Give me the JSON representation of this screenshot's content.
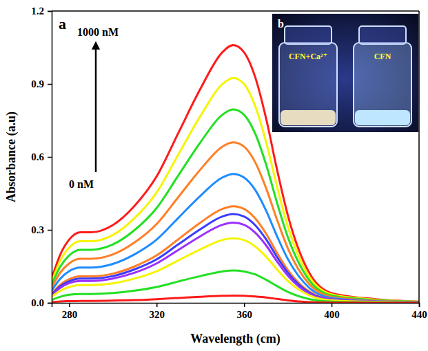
{
  "chart_data": {
    "type": "line",
    "panel_label": "a",
    "x_label": "Wavelength (cm)",
    "y_label": "Absorbance (a.u)",
    "annotations": [
      "1000 nM",
      "0 nM"
    ],
    "x": [
      272,
      276,
      280,
      285,
      290,
      300,
      310,
      320,
      330,
      340,
      350,
      355,
      360,
      365,
      370,
      375,
      380,
      390,
      400,
      420,
      440
    ],
    "xlim": [
      272,
      440
    ],
    "xticks": [
      280,
      320,
      360,
      400,
      440
    ],
    "ylim": [
      0,
      1.2
    ],
    "yticks": [
      {
        "value": 0,
        "label": "0.0"
      },
      0.3,
      0.6,
      0.9,
      1.2
    ],
    "series": [
      {
        "color": "#ff1a1a",
        "values": [
          0.1,
          0.2,
          0.26,
          0.29,
          0.29,
          0.32,
          0.4,
          0.52,
          0.7,
          0.88,
          1.03,
          1.06,
          1.03,
          0.93,
          0.76,
          0.55,
          0.36,
          0.12,
          0.04,
          0.015,
          0.005
        ]
      },
      {
        "color": "#f5f500",
        "values": [
          0.087,
          0.175,
          0.227,
          0.253,
          0.253,
          0.279,
          0.349,
          0.454,
          0.611,
          0.768,
          0.899,
          0.925,
          0.899,
          0.811,
          0.663,
          0.48,
          0.315,
          0.105,
          0.035,
          0.013,
          0.005
        ]
      },
      {
        "color": "#22e022",
        "values": [
          0.075,
          0.15,
          0.195,
          0.218,
          0.218,
          0.24,
          0.3,
          0.39,
          0.525,
          0.66,
          0.773,
          0.795,
          0.773,
          0.697,
          0.57,
          0.413,
          0.27,
          0.09,
          0.03,
          0.011,
          0.004
        ]
      },
      {
        "color": "#ff7f27",
        "values": [
          0.062,
          0.125,
          0.162,
          0.181,
          0.181,
          0.199,
          0.249,
          0.324,
          0.436,
          0.548,
          0.642,
          0.66,
          0.642,
          0.579,
          0.473,
          0.343,
          0.224,
          0.075,
          0.025,
          0.009,
          0.003
        ]
      },
      {
        "color": "#1e8cff",
        "values": [
          0.05,
          0.1,
          0.13,
          0.145,
          0.145,
          0.16,
          0.2,
          0.26,
          0.35,
          0.44,
          0.515,
          0.53,
          0.515,
          0.465,
          0.38,
          0.275,
          0.18,
          0.06,
          0.02,
          0.007,
          0.003
        ]
      },
      {
        "color": "#ff7f27",
        "values": [
          0.037,
          0.075,
          0.097,
          0.109,
          0.109,
          0.12,
          0.15,
          0.195,
          0.262,
          0.33,
          0.386,
          0.397,
          0.386,
          0.348,
          0.285,
          0.206,
          0.135,
          0.045,
          0.015,
          0.006,
          0.002
        ]
      },
      {
        "color": "#3b3bff",
        "values": [
          0.034,
          0.069,
          0.089,
          0.1,
          0.1,
          0.11,
          0.138,
          0.179,
          0.241,
          0.303,
          0.355,
          0.365,
          0.355,
          0.32,
          0.262,
          0.189,
          0.124,
          0.041,
          0.014,
          0.005,
          0.002
        ]
      },
      {
        "color": "#9b30ff",
        "values": [
          0.031,
          0.062,
          0.081,
          0.09,
          0.09,
          0.1,
          0.124,
          0.162,
          0.218,
          0.274,
          0.321,
          0.33,
          0.321,
          0.289,
          0.237,
          0.171,
          0.112,
          0.037,
          0.013,
          0.005,
          0.002
        ]
      },
      {
        "color": "#f5f500",
        "values": [
          0.025,
          0.05,
          0.065,
          0.073,
          0.073,
          0.08,
          0.1,
          0.13,
          0.175,
          0.22,
          0.258,
          0.265,
          0.258,
          0.232,
          0.19,
          0.138,
          0.09,
          0.03,
          0.01,
          0.004,
          0.001
        ]
      },
      {
        "color": "#22e022",
        "values": [
          0.012,
          0.025,
          0.033,
          0.036,
          0.036,
          0.04,
          0.05,
          0.065,
          0.088,
          0.11,
          0.129,
          0.133,
          0.129,
          0.117,
          0.095,
          0.069,
          0.045,
          0.015,
          0.005,
          0.002,
          0.001
        ]
      },
      {
        "color": "#ff1a1a",
        "values": [
          0.003,
          0.006,
          0.007,
          0.008,
          0.008,
          0.009,
          0.011,
          0.015,
          0.02,
          0.025,
          0.029,
          0.03,
          0.029,
          0.026,
          0.022,
          0.016,
          0.01,
          0.003,
          0.001,
          0,
          0
        ]
      }
    ],
    "inset": {
      "label": "b",
      "texts": [
        "CFN+Ca²⁺",
        "CFN"
      ]
    }
  }
}
